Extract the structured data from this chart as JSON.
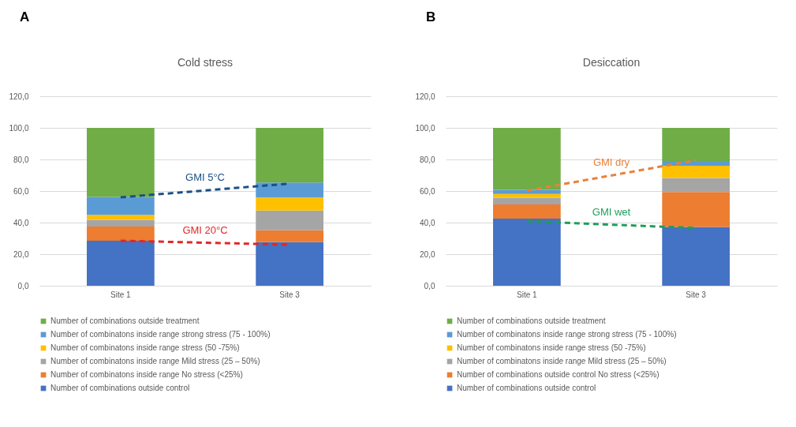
{
  "chart_data": [
    {
      "type": "bar",
      "title": "Cold stress",
      "annotations": [
        "A"
      ],
      "categories": [
        "Site 1",
        "Site 3"
      ],
      "stacked": true,
      "legend": "bottom",
      "grid": "y",
      "line_style": "dashed",
      "ylim": [
        0,
        120
      ],
      "yticks": [
        {
          "value": 0,
          "label": "0,0"
        },
        {
          "value": 20,
          "label": "20,0"
        },
        {
          "value": 40,
          "label": "40,0"
        },
        {
          "value": 60,
          "label": "60,0"
        },
        {
          "value": 80,
          "label": "80,0"
        },
        {
          "value": 100,
          "label": "100,0"
        },
        {
          "value": 120,
          "label": "120,0"
        }
      ],
      "series": [
        {
          "name": "Number of combinations outside control",
          "color": "#4472c4",
          "values": [
            28.5,
            27.6
          ]
        },
        {
          "name": "Number of combinatons inside range No stress (<25%)",
          "color": "#ed7d31",
          "values": [
            9.0,
            7.5
          ]
        },
        {
          "name": "Number of combinatons inside range Mild stress (25 – 50%)",
          "color": "#a5a5a5",
          "values": [
            4.2,
            12.5
          ]
        },
        {
          "name": "Number of combinatons inside range stress (50 -75%)",
          "color": "#ffc000",
          "values": [
            3.2,
            8.3
          ]
        },
        {
          "name": "Number of combinatons inside range strong stress (75 - 100%)",
          "color": "#5b9bd5",
          "values": [
            11.4,
            9.5
          ]
        },
        {
          "name": "Number of combinations outside treatment",
          "color": "#70ad47",
          "values": [
            43.7,
            34.6
          ]
        },
        {
          "type": "line",
          "name": "GMI 5°C",
          "color": "#1a4f85",
          "values": [
            56,
            64.7
          ]
        },
        {
          "type": "line",
          "name": "GMI 20°C",
          "color": "#e02828",
          "values": [
            28.5,
            26.0
          ]
        }
      ]
    },
    {
      "type": "bar",
      "title": "Desiccation",
      "annotations": [
        "B"
      ],
      "categories": [
        "Site 1",
        "Site 3"
      ],
      "stacked": true,
      "legend": "bottom",
      "grid": "y",
      "line_style": "dashed",
      "ylim": [
        0,
        120
      ],
      "yticks": [
        {
          "value": 0,
          "label": "0,0"
        },
        {
          "value": 20,
          "label": "20,0"
        },
        {
          "value": 40,
          "label": "40,0"
        },
        {
          "value": 60,
          "label": "60,0"
        },
        {
          "value": 80,
          "label": "80,0"
        },
        {
          "value": 100,
          "label": "100,0"
        },
        {
          "value": 120,
          "label": "120,0"
        }
      ],
      "series": [
        {
          "name": "Number of combinations outside control",
          "color": "#4472c4",
          "values": [
            42.5,
            37.3
          ]
        },
        {
          "name": "Number of combinations outside control No stress (<25%)",
          "color": "#ed7d31",
          "values": [
            9.0,
            22.1
          ]
        },
        {
          "name": "Number of combinatons inside range Mild stress (25 – 50%)",
          "color": "#a5a5a5",
          "values": [
            4.3,
            8.8
          ]
        },
        {
          "name": "Number of combinatons inside range stress (50 -75%)",
          "color": "#ffc000",
          "values": [
            2.3,
            7.8
          ]
        },
        {
          "name": "Number of combinatons inside range strong stress (75 - 100%)",
          "color": "#5b9bd5",
          "values": [
            2.6,
            3.0
          ]
        },
        {
          "name": "Number of combinations outside treatment",
          "color": "#70ad47",
          "values": [
            39.3,
            21.0
          ]
        },
        {
          "type": "line",
          "name": "GMI dry",
          "color": "#e8823a",
          "values": [
            60.2,
            79.5
          ]
        },
        {
          "type": "line",
          "name": "GMI wet",
          "color": "#1e9e5a",
          "values": [
            40.9,
            36.5
          ]
        }
      ]
    }
  ]
}
